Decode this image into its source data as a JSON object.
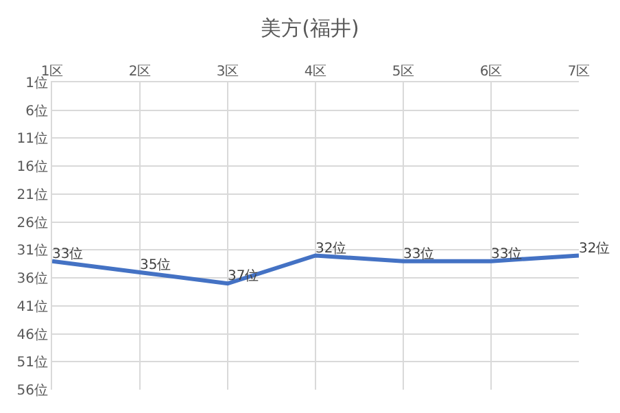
{
  "chart_data": {
    "type": "line",
    "title": "美方(福井)",
    "categories": [
      "1区",
      "2区",
      "3区",
      "4区",
      "5区",
      "6区",
      "7区"
    ],
    "series": [
      {
        "color": "#4472c4",
        "values": [
          33,
          35,
          37,
          32,
          33,
          33,
          32
        ],
        "value_labels": [
          "33位",
          "35位",
          "37位",
          "32位",
          "33位",
          "33位",
          "32位"
        ]
      }
    ],
    "ylim": [
      56,
      1
    ],
    "yticks": [
      {
        "value": 1,
        "label": "1位"
      },
      {
        "value": 6,
        "label": "6位"
      },
      {
        "value": 11,
        "label": "11位"
      },
      {
        "value": 16,
        "label": "16位"
      },
      {
        "value": 21,
        "label": "21位"
      },
      {
        "value": 26,
        "label": "26位"
      },
      {
        "value": 31,
        "label": "31位"
      },
      {
        "value": 36,
        "label": "36位"
      },
      {
        "value": 41,
        "label": "41位"
      },
      {
        "value": 46,
        "label": "46位"
      },
      {
        "value": 51,
        "label": "51位"
      },
      {
        "value": 56,
        "label": "56位"
      }
    ],
    "grid": true,
    "marker": "none",
    "line_style": "solid"
  }
}
